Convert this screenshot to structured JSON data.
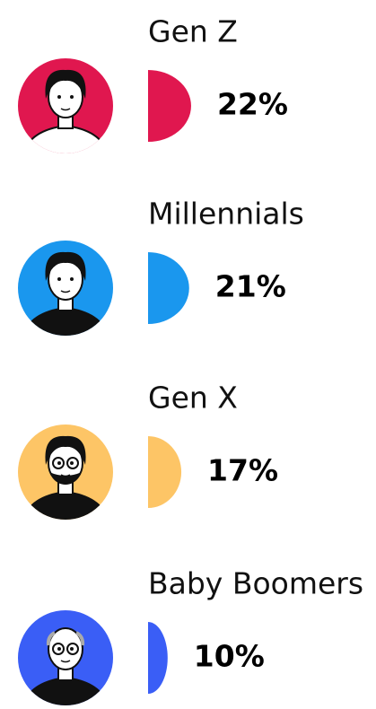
{
  "chart_data": {
    "type": "bar",
    "categories": [
      "Gen Z",
      "Millennials",
      "Gen X",
      "Baby Boomers"
    ],
    "values": [
      22,
      21,
      17,
      10
    ],
    "value_labels": [
      "22%",
      "21%",
      "17%",
      "10%"
    ],
    "colors": [
      "#e0174f",
      "#1a97ee",
      "#fdc566",
      "#3a5ef6"
    ]
  }
}
